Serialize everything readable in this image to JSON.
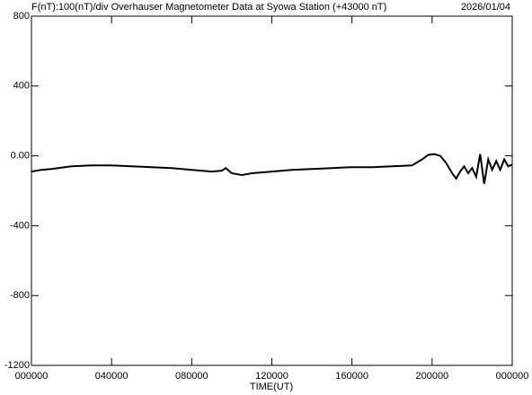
{
  "chart_data": {
    "type": "line",
    "title": "F(nT):100(nT)/div  Overhauser Magnetometer Data at Syowa Station (+43000 nT)",
    "date": "2026/01/04",
    "x_label": "TIME(UT)",
    "x": [
      0,
      0.5,
      1,
      2,
      3,
      4,
      5,
      6,
      7,
      8,
      9,
      9.5,
      9.7,
      10,
      10.5,
      11,
      12,
      13,
      14,
      15,
      16,
      17,
      18,
      19,
      19.5,
      19.8,
      20.1,
      20.4,
      20.7,
      21,
      21.2,
      21.4,
      21.6,
      21.8,
      22,
      22.2,
      22.4,
      22.6,
      22.8,
      23,
      23.2,
      23.4,
      23.6,
      23.8,
      24
    ],
    "series": [
      {
        "color": "#000000",
        "values": [
          -90,
          -80,
          -75,
          -60,
          -55,
          -55,
          -60,
          -65,
          -70,
          -80,
          -90,
          -85,
          -70,
          -100,
          -110,
          -100,
          -90,
          -80,
          -75,
          -70,
          -65,
          -65,
          -60,
          -55,
          -20,
          5,
          10,
          0,
          -40,
          -100,
          -130,
          -90,
          -60,
          -100,
          -70,
          -120,
          10,
          -160,
          -20,
          -80,
          -30,
          -80,
          -20,
          -60,
          -50
        ]
      }
    ],
    "xlim": [
      0,
      24
    ],
    "xticks": [
      {
        "value": 0,
        "label": "000000"
      },
      {
        "value": 4,
        "label": "040000"
      },
      {
        "value": 8,
        "label": "080000"
      },
      {
        "value": 12,
        "label": "120000"
      },
      {
        "value": 16,
        "label": "160000"
      },
      {
        "value": 20,
        "label": "200000"
      },
      {
        "value": 24,
        "label": "000000"
      }
    ],
    "ylim": [
      -1200,
      800
    ],
    "yticks": [
      800,
      400,
      {
        "value": 0,
        "label": "0.00"
      },
      -400,
      -800,
      -1200
    ]
  }
}
